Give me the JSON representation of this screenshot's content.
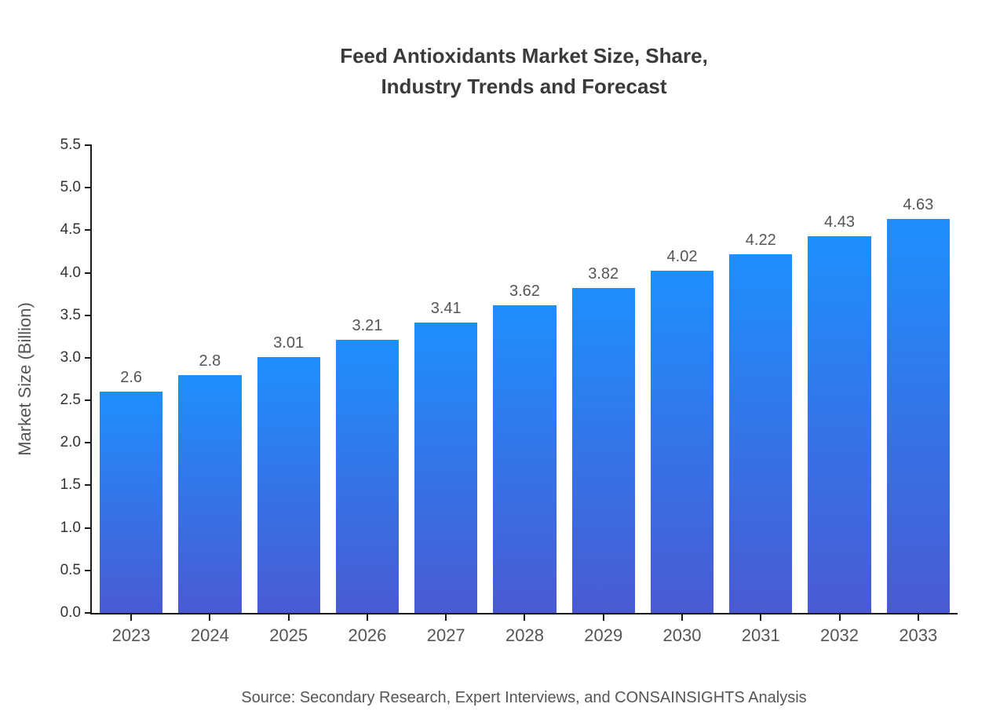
{
  "chart_data": {
    "type": "bar",
    "title": "Feed Antioxidants Market Size, Share, Industry Trends and Forecast",
    "title_line1": "Feed Antioxidants Market Size, Share,",
    "title_line2": "Industry Trends and Forecast",
    "categories": [
      "2023",
      "2024",
      "2025",
      "2026",
      "2027",
      "2028",
      "2029",
      "2030",
      "2031",
      "2032",
      "2033"
    ],
    "values": [
      2.6,
      2.8,
      3.01,
      3.21,
      3.41,
      3.62,
      3.82,
      4.02,
      4.22,
      4.43,
      4.63
    ],
    "xlabel": "",
    "ylabel": "Market Size (Billion)",
    "ylim": [
      0,
      5.5
    ],
    "yticks": [
      "0.0",
      "0.5",
      "1.0",
      "1.5",
      "2.0",
      "2.5",
      "3.0",
      "3.5",
      "4.0",
      "4.5",
      "5.0",
      "5.5"
    ],
    "grid": false,
    "legend": false,
    "bar_gradient_top": "#1e8ffd",
    "bar_gradient_bottom": "#4a5ad2",
    "source": "Source: Secondary Research, Expert Interviews, and CONSAINSIGHTS Analysis"
  }
}
